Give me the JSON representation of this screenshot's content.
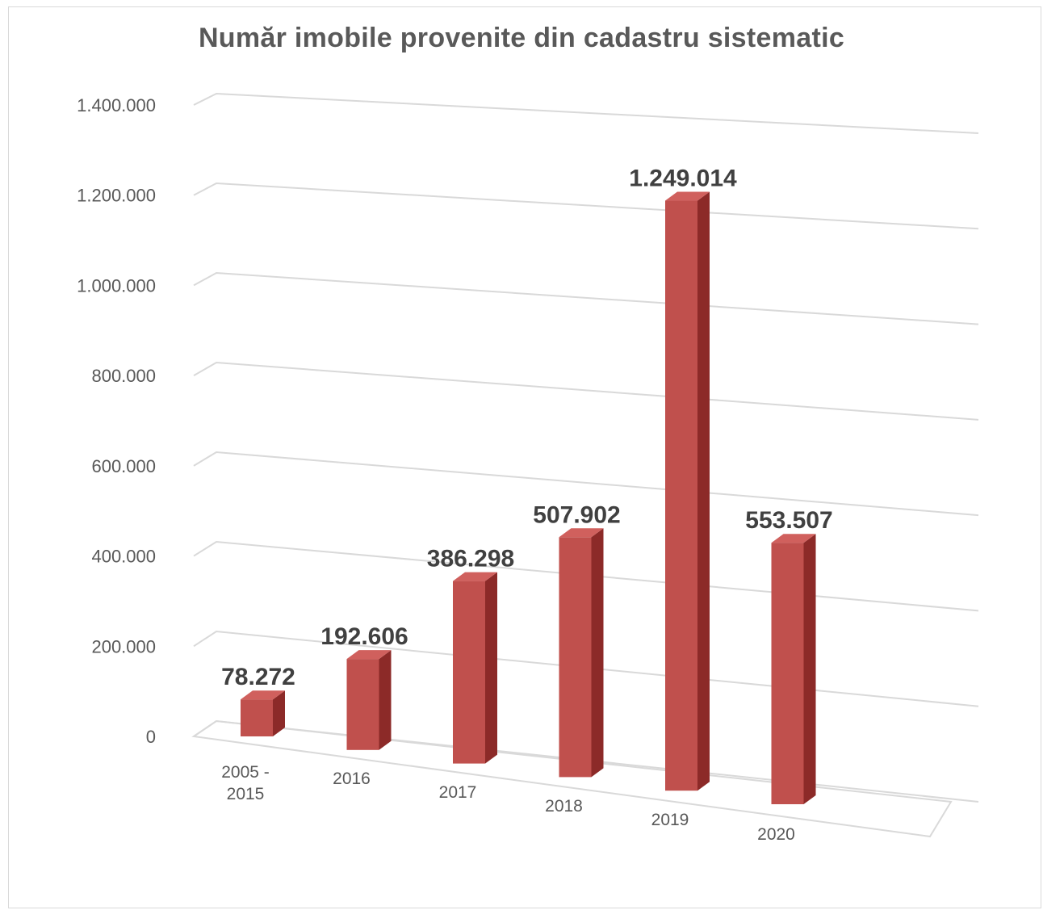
{
  "chart_data": {
    "type": "bar",
    "title": "Număr imobile provenite din cadastru sistematic",
    "categories": [
      [
        "2005 -",
        "2015"
      ],
      [
        "2016"
      ],
      [
        "2017"
      ],
      [
        "2018"
      ],
      [
        "2019"
      ],
      [
        "2020"
      ]
    ],
    "values": [
      78272,
      192606,
      386298,
      507902,
      1249014,
      553507
    ],
    "data_labels": [
      "78.272",
      "192.606",
      "386.298",
      "507.902",
      "1.249.014",
      "553.507"
    ],
    "y_ticks": [
      0,
      200000,
      400000,
      600000,
      800000,
      1000000,
      1200000,
      1400000
    ],
    "y_tick_labels": [
      "0",
      "200.000",
      "400.000",
      "600.000",
      "800.000",
      "1.000.000",
      "1.200.000",
      "1.400.000"
    ],
    "ylim": [
      0,
      1400000
    ],
    "xlabel": "",
    "ylabel": "",
    "grid": true,
    "legend": "none",
    "style": "3d-column"
  },
  "colors": {
    "bar_front": "#c0504d",
    "bar_top": "#d0605d",
    "bar_side": "#8c2a28",
    "grid": "#d9d9d9",
    "text": "#595959",
    "data_label": "#404040"
  }
}
